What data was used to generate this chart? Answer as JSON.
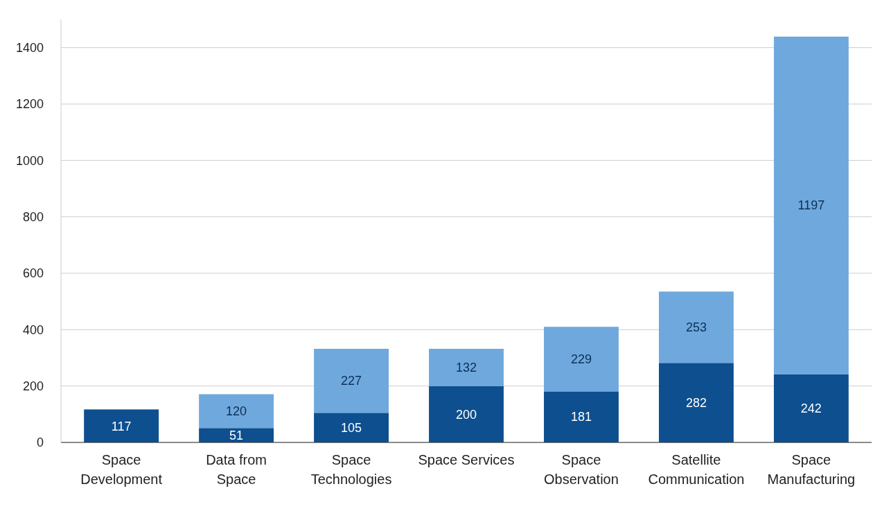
{
  "chart_data": {
    "type": "bar",
    "stacked": true,
    "categories": [
      "Space Development",
      "Data from Space",
      "Space Technologies",
      "Space Services",
      "Space Observation",
      "Satellite Communication",
      "Space Manufacturing"
    ],
    "series": [
      {
        "color": "#0d4f8f",
        "values": [
          117,
          51,
          105,
          200,
          181,
          282,
          242
        ]
      },
      {
        "color": "#6fa8dc",
        "values": [
          null,
          120,
          227,
          132,
          229,
          253,
          1197
        ]
      }
    ],
    "ylim": [
      0,
      1500
    ],
    "yticks": [
      0,
      200,
      400,
      600,
      800,
      1000,
      1200,
      1400
    ],
    "grid": "y",
    "data_labels": true
  }
}
